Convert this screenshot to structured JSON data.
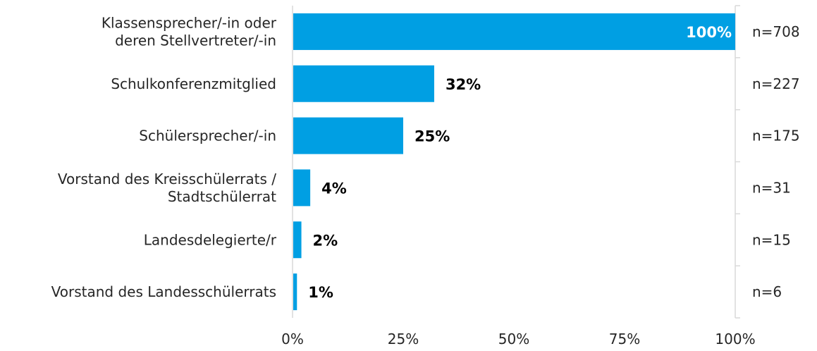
{
  "chart_data": {
    "type": "bar",
    "orientation": "horizontal",
    "categories": [
      [
        "Klassensprecher/-in oder",
        "deren Stellvertreter/-in"
      ],
      [
        "Schulkonferenzmitglied"
      ],
      [
        "Schülersprecher/-in"
      ],
      [
        "Vorstand des Kreisschülerrats /",
        "Stadtschülerrat"
      ],
      [
        "Landesdelegierte/r"
      ],
      [
        "Vorstand des Landesschülerrats"
      ]
    ],
    "values": [
      100,
      32,
      25,
      4,
      2,
      1
    ],
    "value_labels": [
      "100%",
      "32%",
      "25%",
      "4%",
      "2%",
      "1%"
    ],
    "n_labels": [
      "n=708",
      "n=227",
      "n=175",
      "n=31",
      "n=15",
      "n=6"
    ],
    "xlim": [
      0,
      100
    ],
    "x_ticks": [
      "0%",
      "25%",
      "50%",
      "75%",
      "100%"
    ],
    "x_tick_values": [
      0,
      25,
      50,
      75,
      100
    ],
    "bar_color": "#009fe3",
    "label_color_inside": "#ffffff",
    "label_color_outside": "#000000",
    "axis_color": "#d9d9d9",
    "grid": false
  }
}
